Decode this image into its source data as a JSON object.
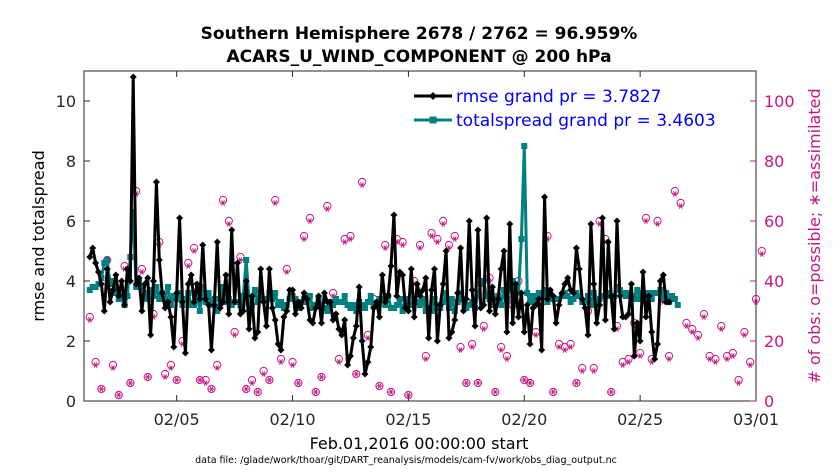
{
  "title_line1": "Southern Hemisphere 2678 / 2762 = 96.959%",
  "title_line2": "ACARS_U_WIND_COMPONENT @ 200 hPa",
  "xlabel": "Feb.01,2016 00:00:00 start",
  "ylabel_left": "rmse and totalspread",
  "ylabel_right": "# of obs: o=possible; ∗=assimilated",
  "footer": "data file: /glade/work/thoar/git/DART_reanalysis/models/cam-fv/work/obs_diag_output.nc",
  "colors": {
    "rmse": "#000000",
    "spread": "#008080",
    "obs": "#c71585",
    "legend_text": "#0000ff"
  },
  "chart_data": {
    "type": "line",
    "title": "Southern Hemisphere 2678 / 2762 = 96.959%",
    "subtitle": "ACARS_U_WIND_COMPONENT @ 200 hPa",
    "x_unit": "days since Feb.01,2016 00:00:00",
    "xlim": [
      0,
      29
    ],
    "x_tick_values": [
      4,
      9,
      14,
      19,
      24,
      29
    ],
    "x_tick_labels": [
      "02/05",
      "02/10",
      "02/15",
      "02/20",
      "02/25",
      "03/01"
    ],
    "ylim_left": [
      0,
      11
    ],
    "y_ticks_left": [
      0,
      2,
      4,
      6,
      8,
      10
    ],
    "ylim_right": [
      0,
      110
    ],
    "y_ticks_right": [
      0,
      20,
      40,
      60,
      80,
      100
    ],
    "grid": false,
    "legend_position": "top-right",
    "series": [
      {
        "name": "rmse grand pr = 3.7827",
        "axis": "left",
        "marker": "diamond",
        "x_start": 0.25,
        "x_step": 0.125,
        "values": [
          4.8,
          5.1,
          4.6,
          4.3,
          3.9,
          3.0,
          4.4,
          3.3,
          3.7,
          4.2,
          3.5,
          4.0,
          3.2,
          4.4,
          4.0,
          10.8,
          3.9,
          4.1,
          3.0,
          3.9,
          4.1,
          2.2,
          4.0,
          7.3,
          4.7,
          3.6,
          3.1,
          3.3,
          2.8,
          1.8,
          3.6,
          6.1,
          3.3,
          1.6,
          3.9,
          4.2,
          3.3,
          3.9,
          3.4,
          5.2,
          3.4,
          3.2,
          1.7,
          3.2,
          5.3,
          3.1,
          3.3,
          4.2,
          2.9,
          5.7,
          3.3,
          4.6,
          2.9,
          3.0,
          4.0,
          2.4,
          3.5,
          2.1,
          2.3,
          4.4,
          3.3,
          2.5,
          4.4,
          3.1,
          2.7,
          1.9,
          1.7,
          2.8,
          3.0,
          3.7,
          3.7,
          2.9,
          3.3,
          3.1,
          3.6,
          3.4,
          2.7,
          2.6,
          3.1,
          3.5,
          2.6,
          3.6,
          3.3,
          3.3,
          2.7,
          2.9,
          2.4,
          2.2,
          2.7,
          1.2,
          1.5,
          2.1,
          2.5,
          3.8,
          2.0,
          0.9,
          1.3,
          1.8,
          3.1,
          3.3,
          2.8,
          4.2,
          3.3,
          3.5,
          4.5,
          6.2,
          3.5,
          4.3,
          4.2,
          3.1,
          3.0,
          4.4,
          2.8,
          3.9,
          3.5,
          3.7,
          4.1,
          2.1,
          3.7,
          4.4,
          2.0,
          3.2,
          3.9,
          5.0,
          2.1,
          2.3,
          2.7,
          3.6,
          5.1,
          3.0,
          3.4,
          6.0,
          3.7,
          2.5,
          5.7,
          3.1,
          3.2,
          6.1,
          3.0,
          3.8,
          2.9,
          3.4,
          4.4,
          5.0,
          2.3,
          5.9,
          2.6,
          3.9,
          2.8,
          3.6,
          2.3,
          3.2,
          1.9,
          3.1,
          3.2,
          3.4,
          1.7,
          6.8,
          3.4,
          3.7,
          3.5,
          2.6,
          3.2,
          3.6,
          3.9,
          4.1,
          3.7,
          3.6,
          5.1,
          4.4,
          3.4,
          3.1,
          2.2,
          5.9,
          3.9,
          2.6,
          3.2,
          6.1,
          2.7,
          5.3,
          3.5,
          2.4,
          6.0,
          3.5,
          2.8,
          2.8,
          2.9,
          3.9,
          1.5,
          2.6,
          2.0,
          4.3,
          2.8,
          3.5,
          2.3,
          1.4,
          1.9,
          4.0,
          4.2,
          3.3,
          3.3
        ]
      },
      {
        "name": "totalspread grand pr = 3.4603",
        "axis": "left",
        "marker": "square",
        "x_start": 0.25,
        "x_step": 0.125,
        "values": [
          3.7,
          3.8,
          3.8,
          3.9,
          4.1,
          4.6,
          4.7,
          3.9,
          4.0,
          3.6,
          3.4,
          3.5,
          3.2,
          3.5,
          4.8,
          6.3,
          3.8,
          4.0,
          3.8,
          3.6,
          3.4,
          3.7,
          3.5,
          3.8,
          3.4,
          3.6,
          3.4,
          3.8,
          3.2,
          3.5,
          3.4,
          3.6,
          3.2,
          3.4,
          3.6,
          3.2,
          3.2,
          3.6,
          3.0,
          3.8,
          3.3,
          3.6,
          3.2,
          3.4,
          3.0,
          3.4,
          3.8,
          3.3,
          3.4,
          3.2,
          3.3,
          3.3,
          3.2,
          3.5,
          4.7,
          3.3,
          3.2,
          3.7,
          3.3,
          3.6,
          3.4,
          3.4,
          3.6,
          3.4,
          3.6,
          3.2,
          3.3,
          3.1,
          3.2,
          3.4,
          3.5,
          3.4,
          3.1,
          3.3,
          3.4,
          3.3,
          3.5,
          3.1,
          3.2,
          3.4,
          3.2,
          3.1,
          3.0,
          3.3,
          3.2,
          3.4,
          3.3,
          3.3,
          3.5,
          3.2,
          3.1,
          3.2,
          3.0,
          3.3,
          3.2,
          3.1,
          3.3,
          3.5,
          3.2,
          3.2,
          3.4,
          3.4,
          3.2,
          3.5,
          3.1,
          3.1,
          3.2,
          3.4,
          3.0,
          3.4,
          3.2,
          3.2,
          3.4,
          3.3,
          3.2,
          3.4,
          3.0,
          3.1,
          3.0,
          3.4,
          3.2,
          3.1,
          3.3,
          3.6,
          3.1,
          3.4,
          3.0,
          3.3,
          3.6,
          3.4,
          3.1,
          3.2,
          3.3,
          3.1,
          3.5,
          3.9,
          4.0,
          3.5,
          3.4,
          3.2,
          3.4,
          3.5,
          3.2,
          3.7,
          3.4,
          3.8,
          4.0,
          3.4,
          3.6,
          5.4,
          8.5,
          3.6,
          3.3,
          3.5,
          3.3,
          3.6,
          3.5,
          3.7,
          3.3,
          3.5,
          3.4,
          3.4,
          3.4,
          3.5,
          3.6,
          3.5,
          3.3,
          3.4,
          3.6,
          3.5,
          3.3,
          3.3,
          3.5,
          3.2,
          3.6,
          3.2,
          3.4,
          3.5,
          3.5,
          3.6,
          3.5,
          3.5,
          3.8,
          3.7,
          3.6,
          3.5,
          3.6,
          3.5,
          3.4,
          3.7,
          3.4,
          3.6,
          3.3,
          3.6,
          3.4,
          3.6,
          3.6,
          3.7,
          3.4,
          3.6,
          3.3,
          3.5,
          3.4,
          3.2
        ]
      },
      {
        "name": "obs possible",
        "axis": "right",
        "marker": "circle",
        "x_start": 0.25,
        "x_step": 0.25,
        "values": [
          28,
          13,
          4,
          47,
          12,
          2,
          45,
          6,
          70,
          44,
          8,
          29,
          53,
          9,
          12,
          7,
          20,
          46,
          51,
          7,
          7,
          4,
          12,
          67,
          60,
          23,
          48,
          4,
          7,
          3,
          10,
          7,
          67,
          14,
          44,
          13,
          6,
          55,
          61,
          3,
          8,
          65,
          36,
          14,
          54,
          55,
          9,
          73,
          22,
          34,
          5,
          52,
          3,
          54,
          53,
          2,
          40,
          52,
          15,
          56,
          54,
          60,
          52,
          55,
          18,
          6,
          19,
          6,
          25,
          41,
          3,
          18,
          15,
          32,
          40,
          7,
          6,
          23,
          33,
          55,
          3,
          19,
          18,
          19,
          6,
          11,
          30,
          11,
          60,
          54,
          3,
          25,
          13,
          14,
          26,
          16,
          61,
          14,
          60,
          34,
          15,
          70,
          66,
          26,
          24,
          22,
          29,
          15,
          14,
          25,
          15,
          16,
          7,
          23,
          13,
          34,
          50
        ]
      },
      {
        "name": "obs assimilated",
        "axis": "right",
        "marker": "asterisk",
        "x_start": 0.25,
        "x_step": 0.25,
        "values": [
          27,
          12,
          4,
          46,
          11,
          2,
          44,
          6,
          69,
          43,
          8,
          28,
          52,
          8,
          11,
          7,
          19,
          45,
          50,
          7,
          6,
          4,
          11,
          66,
          59,
          22,
          47,
          4,
          6,
          3,
          9,
          7,
          66,
          13,
          43,
          12,
          6,
          54,
          60,
          3,
          8,
          64,
          35,
          13,
          53,
          54,
          9,
          72,
          21,
          33,
          5,
          51,
          3,
          53,
          52,
          2,
          39,
          51,
          14,
          55,
          53,
          59,
          51,
          54,
          17,
          6,
          18,
          6,
          24,
          40,
          3,
          17,
          14,
          31,
          39,
          7,
          6,
          22,
          32,
          54,
          3,
          18,
          17,
          18,
          6,
          10,
          29,
          10,
          59,
          53,
          3,
          24,
          12,
          13,
          25,
          15,
          60,
          13,
          59,
          33,
          14,
          69,
          65,
          25,
          23,
          21,
          28,
          14,
          13,
          24,
          14,
          15,
          6,
          22,
          12,
          33,
          49
        ]
      }
    ]
  }
}
